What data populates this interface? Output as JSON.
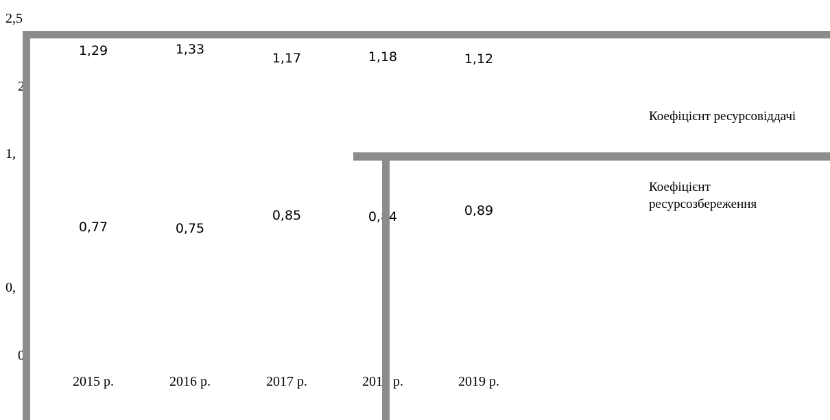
{
  "chart_data": {
    "type": "line",
    "categories": [
      "2015 р.",
      "2016 р.",
      "2017 р.",
      "2018 р.",
      "2019 р."
    ],
    "series": [
      {
        "name": "Коефіцієнт ресурсовіддачі",
        "values": [
          1.29,
          1.33,
          1.17,
          1.18,
          1.12
        ],
        "labels": [
          "1,29",
          "1,33",
          "1,17",
          "1,18",
          "1,12"
        ]
      },
      {
        "name": "Коефіцієнт ресурсозбереження",
        "values": [
          0.77,
          0.75,
          0.85,
          0.84,
          0.89
        ],
        "labels": [
          "0,77",
          "0,75",
          "0,85",
          "0,84",
          "0,89"
        ]
      }
    ],
    "y_tick_labels": [
      "2,5",
      "2",
      "1,",
      "0,",
      "0"
    ],
    "ylim": [
      0,
      2.5
    ],
    "legend_position": "right",
    "colors": {
      "overlay": "#8c8c8c",
      "text": "#000000"
    }
  }
}
